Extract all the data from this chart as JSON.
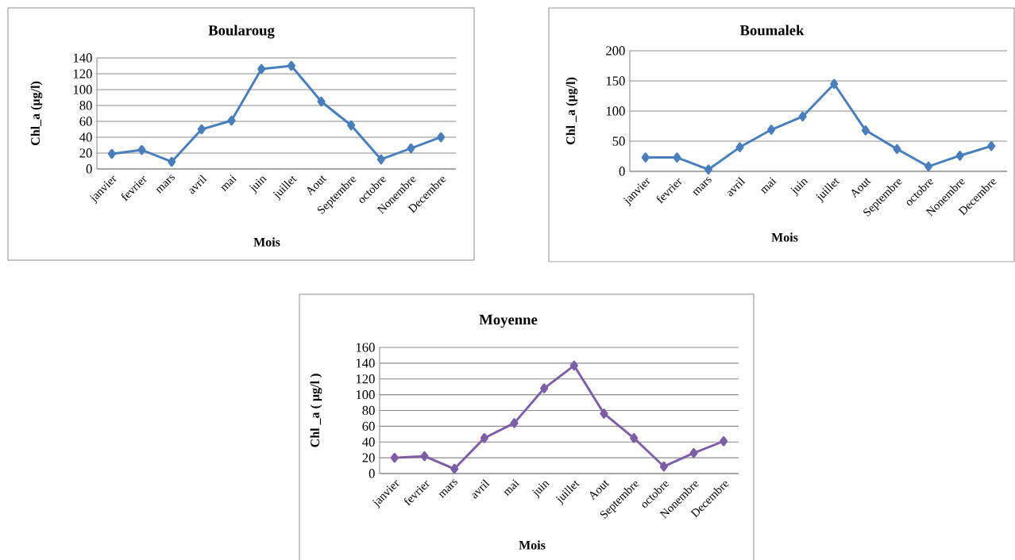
{
  "chart_data": [
    {
      "type": "line",
      "title": "Boularoug",
      "xlabel": "Mois",
      "ylabel": "Chl_a (µg/l)",
      "categories": [
        "janvier",
        "fevrier",
        "mars",
        "avril",
        "mai",
        "juin",
        "juillet",
        "Aout",
        "Septembre",
        "octobre",
        "Nonembre",
        "Decembre"
      ],
      "series": [
        {
          "color": "#4a7ebb",
          "values": [
            19,
            24,
            9,
            50,
            61,
            126,
            130,
            85,
            55,
            12,
            26,
            40
          ]
        }
      ],
      "ylim": [
        0,
        140
      ],
      "yticks": [
        0,
        20,
        40,
        60,
        80,
        100,
        120,
        140
      ],
      "grid": "y",
      "marker": "diamond"
    },
    {
      "type": "line",
      "title": "Boumalek",
      "xlabel": "Mois",
      "ylabel": "Chl _a (µg/l)",
      "categories": [
        "janvier",
        "fevrier",
        "mars",
        "avril",
        "mai",
        "juin",
        "juillet",
        "Aout",
        "Septembre",
        "octobre",
        "Nonembre",
        "Decembre"
      ],
      "series": [
        {
          "color": "#4a7ebb",
          "values": [
            23,
            23,
            3,
            40,
            69,
            91,
            145,
            68,
            37,
            8,
            26,
            42
          ]
        }
      ],
      "ylim": [
        0,
        200
      ],
      "yticks": [
        0,
        50,
        100,
        150,
        200
      ],
      "grid": "y",
      "marker": "diamond"
    },
    {
      "type": "line",
      "title": "Moyenne",
      "xlabel": "Mois",
      "ylabel": "Chl _a ( µg/l )",
      "categories": [
        "janvier",
        "fevrier",
        "mars",
        "avril",
        "mai",
        "juin",
        "juillet",
        "Aout",
        "Septembre",
        "octobre",
        "Nonembre",
        "Decembre"
      ],
      "series": [
        {
          "color": "#7b5ea6",
          "values": [
            20,
            22,
            6,
            45,
            64,
            108,
            137,
            76,
            45,
            9,
            26,
            41
          ]
        }
      ],
      "ylim": [
        0,
        160
      ],
      "yticks": [
        0,
        20,
        40,
        60,
        80,
        100,
        120,
        140,
        160
      ],
      "grid": "y",
      "marker": "diamond"
    }
  ]
}
